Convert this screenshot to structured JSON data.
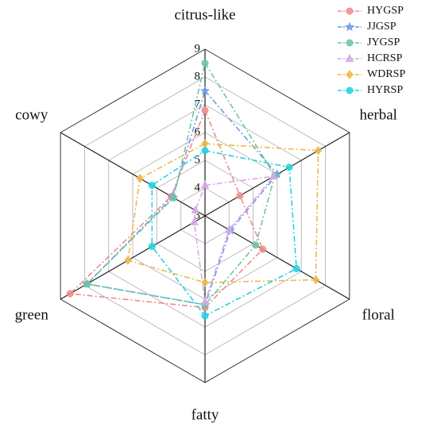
{
  "chart_data": {
    "type": "radar",
    "categories": [
      "citrus-like",
      "herbal",
      "floral",
      "fatty",
      "green",
      "cowy"
    ],
    "ylim": [
      3,
      9
    ],
    "yticks": [
      3,
      4,
      5,
      6,
      7,
      8,
      9
    ],
    "grid": true,
    "legend": "upper right",
    "series": [
      {
        "name": "HYGSP",
        "color": "#f28b8b",
        "marker": "circle",
        "values": [
          6.8,
          4.45,
          5.4,
          6.3,
          8.6,
          4.4
        ]
      },
      {
        "name": "JJGSP",
        "color": "#6f9be8",
        "marker": "star",
        "values": [
          7.5,
          6.0,
          4.05,
          6.2,
          7.9,
          4.35
        ]
      },
      {
        "name": "JYGSP",
        "color": "#6cc7a0",
        "marker": "circle",
        "values": [
          8.5,
          5.9,
          5.1,
          6.2,
          7.9,
          4.3
        ]
      },
      {
        "name": "HCRSP",
        "color": "#d8a8e6",
        "marker": "triangle",
        "values": [
          4.1,
          5.85,
          4.0,
          6.1,
          3.45,
          3.4
        ]
      },
      {
        "name": "WDRSP",
        "color": "#efb84a",
        "marker": "diamond",
        "values": [
          5.6,
          7.7,
          7.6,
          5.4,
          6.2,
          5.7
        ]
      },
      {
        "name": "HYRSP",
        "color": "#22d3e0",
        "marker": "circle",
        "values": [
          5.35,
          6.5,
          6.8,
          6.6,
          5.2,
          5.2
        ]
      }
    ]
  }
}
